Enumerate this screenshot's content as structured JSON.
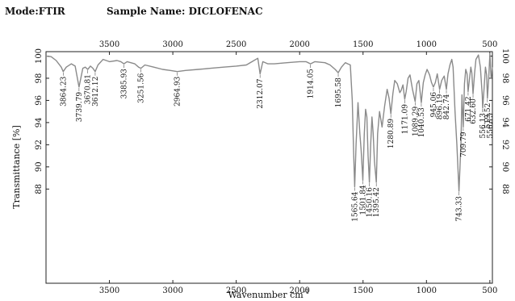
{
  "header": {
    "mode": "Mode:FTIR",
    "sample": "Sample Name: DICLOFENAC"
  },
  "chart_data": {
    "type": "line",
    "title": "",
    "xlabel": "Wavenumber cm",
    "xlabel_sup": "-1",
    "ylabel": "Transmittance [%]",
    "xlim": [
      4000,
      480
    ],
    "ylim": [
      79.5,
      100.4
    ],
    "x_reversed": true,
    "x_ticks": [
      3500,
      3000,
      2500,
      2000,
      1500,
      1000,
      500
    ],
    "y_ticks": [
      100,
      98,
      96,
      94,
      92,
      90,
      88
    ],
    "mirror_axes": true,
    "line_color": "#8a8a8a",
    "series": [
      {
        "x": [
          4000,
          3960,
          3920,
          3880,
          3864.23,
          3840,
          3800,
          3770,
          3739.79,
          3710,
          3690,
          3670.81,
          3650,
          3630,
          3612.12,
          3590,
          3550,
          3500,
          3440,
          3410,
          3385.93,
          3360,
          3300,
          3270,
          3251.56,
          3220,
          3150,
          3080,
          3020,
          2964.93,
          2900,
          2800,
          2700,
          2600,
          2500,
          2420,
          2360,
          2330,
          2312.07,
          2290,
          2250,
          2200,
          2100,
          2000,
          1950,
          1914.05,
          1880,
          1800,
          1760,
          1720,
          1695.58,
          1670,
          1640,
          1620,
          1600,
          1585,
          1575,
          1565.64,
          1555,
          1540,
          1525,
          1515,
          1501.84,
          1490,
          1480,
          1470,
          1460,
          1450.16,
          1440,
          1430,
          1420,
          1410,
          1395.42,
          1385,
          1370,
          1350,
          1330,
          1310,
          1295,
          1280.89,
          1265,
          1250,
          1230,
          1210,
          1200,
          1185,
          1171.09,
          1160,
          1145,
          1130,
          1110,
          1089.29,
          1075,
          1060,
          1040.53,
          1025,
          1010,
          995,
          975,
          960,
          945.06,
          930,
          915,
          896.19,
          880,
          860,
          842.74,
          830,
          815,
          800,
          790,
          775,
          760,
          743.33,
          728,
          720,
          709.79,
          700,
          690,
          680,
          671.42,
          660,
          650,
          642,
          632.6,
          620,
          610,
          590,
          575,
          560,
          556.13,
          545,
          535,
          525,
          519.52,
          510,
          500,
          490,
          480
        ],
        "values": [
          100,
          99.95,
          99.6,
          99.0,
          98.6,
          99.0,
          99.3,
          99.1,
          97.2,
          98.9,
          99.0,
          98.8,
          99.1,
          98.9,
          98.6,
          99.2,
          99.7,
          99.5,
          99.6,
          99.5,
          99.3,
          99.5,
          99.3,
          99.0,
          98.9,
          99.2,
          99.0,
          98.8,
          98.7,
          98.6,
          98.7,
          98.8,
          98.9,
          99.0,
          99.1,
          99.2,
          99.6,
          99.8,
          98.4,
          99.5,
          99.3,
          99.3,
          99.4,
          99.5,
          99.5,
          99.3,
          99.5,
          99.4,
          99.2,
          98.8,
          98.5,
          99.0,
          99.4,
          99.3,
          99.2,
          96.0,
          91.5,
          88.2,
          92.0,
          95.8,
          93.0,
          91.5,
          88.8,
          93.0,
          95.2,
          94.5,
          91.0,
          88.6,
          92.0,
          94.5,
          93.0,
          90.5,
          88.6,
          93.0,
          95.0,
          93.6,
          95.5,
          97.0,
          96.2,
          94.8,
          96.6,
          97.8,
          97.5,
          96.7,
          96.9,
          97.4,
          96.1,
          96.8,
          98.0,
          98.3,
          97.0,
          95.9,
          97.5,
          97.8,
          95.8,
          97.6,
          98.3,
          98.8,
          98.3,
          97.6,
          97.2,
          97.6,
          98.4,
          97.0,
          97.8,
          98.2,
          97.0,
          98.4,
          99.2,
          99.7,
          99.0,
          95.0,
          92.0,
          87.8,
          92.0,
          96.5,
          93.6,
          97.5,
          98.8,
          98.4,
          96.8,
          98.0,
          99.0,
          98.5,
          96.6,
          98.5,
          99.7,
          100.1,
          99.0,
          96.5,
          95.3,
          97.2,
          99.0,
          98.3,
          96.2,
          97.8,
          100.2,
          98.0,
          99.0
        ]
      }
    ],
    "peaks": [
      {
        "x": 3864.23,
        "label": "3864.23"
      },
      {
        "x": 3739.79,
        "label": "3739.79"
      },
      {
        "x": 3670.81,
        "label": "3670.81"
      },
      {
        "x": 3612.12,
        "label": "3612.12"
      },
      {
        "x": 3385.93,
        "label": "3385.93"
      },
      {
        "x": 3251.56,
        "label": "3251.56"
      },
      {
        "x": 2964.93,
        "label": "2964.93"
      },
      {
        "x": 2312.07,
        "label": "2312.07"
      },
      {
        "x": 1914.05,
        "label": "1914.05"
      },
      {
        "x": 1695.58,
        "label": "1695.58"
      },
      {
        "x": 1565.64,
        "label": "1565.64"
      },
      {
        "x": 1501.84,
        "label": "1501.84"
      },
      {
        "x": 1450.16,
        "label": "1450.16"
      },
      {
        "x": 1395.42,
        "label": "1395.42"
      },
      {
        "x": 1280.89,
        "label": "1280.89"
      },
      {
        "x": 1171.09,
        "label": "1171.09"
      },
      {
        "x": 1089.29,
        "label": "1089.29"
      },
      {
        "x": 1040.53,
        "label": "1040.53"
      },
      {
        "x": 945.06,
        "label": "945.06"
      },
      {
        "x": 896.19,
        "label": "896.19"
      },
      {
        "x": 842.74,
        "label": "842.74"
      },
      {
        "x": 743.33,
        "label": "743.33"
      },
      {
        "x": 709.79,
        "label": "709.79"
      },
      {
        "x": 671.42,
        "label": "671.42"
      },
      {
        "x": 632.6,
        "label": "632.60"
      },
      {
        "x": 556.13,
        "label": "556.13"
      },
      {
        "x": 556.13,
        "label": "556.13"
      },
      {
        "x": 519.52,
        "label": "519.52"
      }
    ]
  }
}
